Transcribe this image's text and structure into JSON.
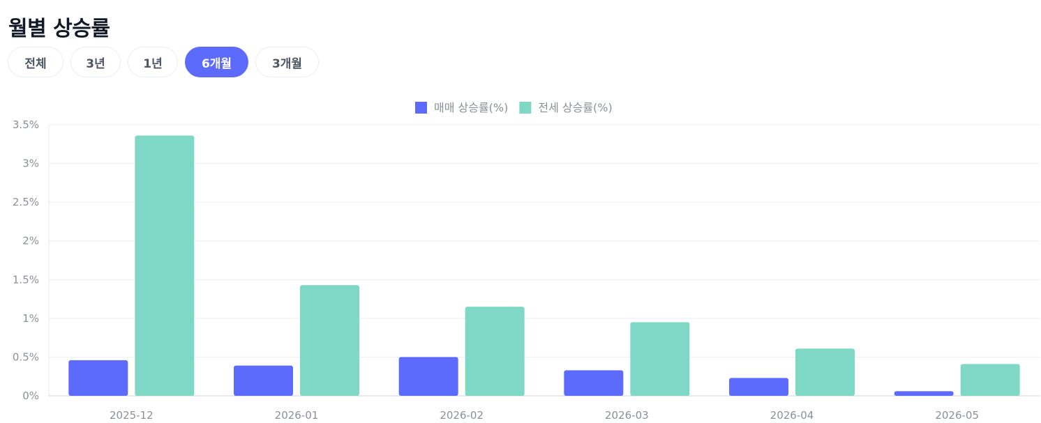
{
  "page": {
    "title": "월별 상승률"
  },
  "tabs": [
    {
      "label": "전체",
      "active": false
    },
    {
      "label": "3년",
      "active": false
    },
    {
      "label": "1년",
      "active": false
    },
    {
      "label": "6개월",
      "active": true
    },
    {
      "label": "3개월",
      "active": false
    }
  ],
  "colors": {
    "accent": "#5c6bfb",
    "sale": "#5d6bfc",
    "jeonse": "#7fd8c5"
  },
  "chart_data": {
    "type": "bar",
    "categories": [
      "2025-12",
      "2026-01",
      "2026-02",
      "2026-03",
      "2026-04",
      "2026-05"
    ],
    "series": [
      {
        "name": "매매 상승률(%)",
        "color": "#5d6bfc",
        "values": [
          0.46,
          0.39,
          0.5,
          0.33,
          0.23,
          0.06
        ]
      },
      {
        "name": "전세 상승률(%)",
        "color": "#7fd8c5",
        "values": [
          3.36,
          1.43,
          1.15,
          0.95,
          0.61,
          0.41
        ]
      }
    ],
    "yticks": [
      "0%",
      "0.5%",
      "1%",
      "1.5%",
      "2%",
      "2.5%",
      "3%",
      "3.5%"
    ],
    "ylim": [
      0,
      3.5
    ],
    "grid": true,
    "legend_position": "top-center"
  }
}
